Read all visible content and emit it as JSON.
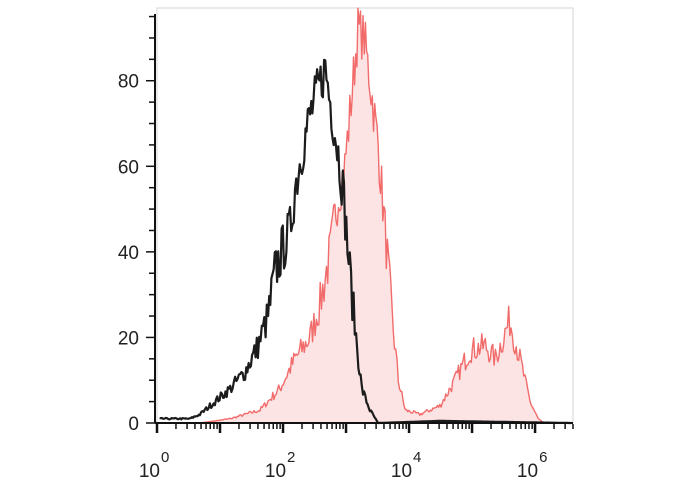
{
  "chart_data": {
    "type": "area",
    "title": "",
    "xlabel": "",
    "ylabel": "",
    "x_scale": "log",
    "xlim": [
      1,
      4000000
    ],
    "ylim": [
      0,
      97
    ],
    "grid": false,
    "x_tick_labels": [
      {
        "value": 1,
        "base": "10",
        "exp": "0"
      },
      {
        "value": 100,
        "base": "10",
        "exp": "2"
      },
      {
        "value": 10000,
        "base": "10",
        "exp": "4"
      },
      {
        "value": 1000000,
        "base": "10",
        "exp": "6"
      }
    ],
    "y_tick_labels": [
      {
        "value": 0,
        "label": "0"
      },
      {
        "value": 20,
        "label": "20"
      },
      {
        "value": 40,
        "label": "40"
      },
      {
        "value": 60,
        "label": "60"
      },
      {
        "value": 80,
        "label": "80"
      }
    ],
    "series": [
      {
        "color": "#1c1c1c",
        "fill": "none",
        "points": [
          [
            1.1,
            1
          ],
          [
            3.3,
            1
          ],
          [
            4.8,
            2
          ],
          [
            8.3,
            5
          ],
          [
            14.5,
            8
          ],
          [
            25,
            12
          ],
          [
            40,
            18
          ],
          [
            58,
            25
          ],
          [
            74,
            35
          ],
          [
            95,
            40
          ],
          [
            129,
            45
          ],
          [
            155,
            55
          ],
          [
            209,
            65
          ],
          [
            269,
            72
          ],
          [
            363,
            78
          ],
          [
            468,
            83
          ],
          [
            562,
            75
          ],
          [
            724,
            65
          ],
          [
            891,
            55
          ],
          [
            1148,
            35
          ],
          [
            1445,
            20
          ],
          [
            1778,
            8
          ],
          [
            2399,
            3
          ],
          [
            3236,
            0
          ],
          [
            30900,
            0.5
          ],
          [
            3800000,
            0
          ]
        ]
      },
      {
        "color": "#f26b6b",
        "fill": "#fde4e4",
        "points": [
          [
            4.8,
            0
          ],
          [
            14.5,
            1
          ],
          [
            43,
            3
          ],
          [
            89,
            8
          ],
          [
            155,
            15
          ],
          [
            269,
            20
          ],
          [
            389,
            28
          ],
          [
            562,
            40
          ],
          [
            724,
            52
          ],
          [
            955,
            60
          ],
          [
            1259,
            78
          ],
          [
            1549,
            92
          ],
          [
            1950,
            90
          ],
          [
            2399,
            80
          ],
          [
            3236,
            65
          ],
          [
            4169,
            45
          ],
          [
            5370,
            25
          ],
          [
            6761,
            10
          ],
          [
            8710,
            3
          ],
          [
            14791,
            2
          ],
          [
            30903,
            4
          ],
          [
            53703,
            10
          ],
          [
            93325,
            17
          ],
          [
            162181,
            18
          ],
          [
            234423,
            15
          ],
          [
            398107,
            24
          ],
          [
            575440,
            15
          ],
          [
            831764,
            5
          ],
          [
            1122018,
            1
          ],
          [
            1380000,
            0
          ]
        ]
      }
    ]
  }
}
